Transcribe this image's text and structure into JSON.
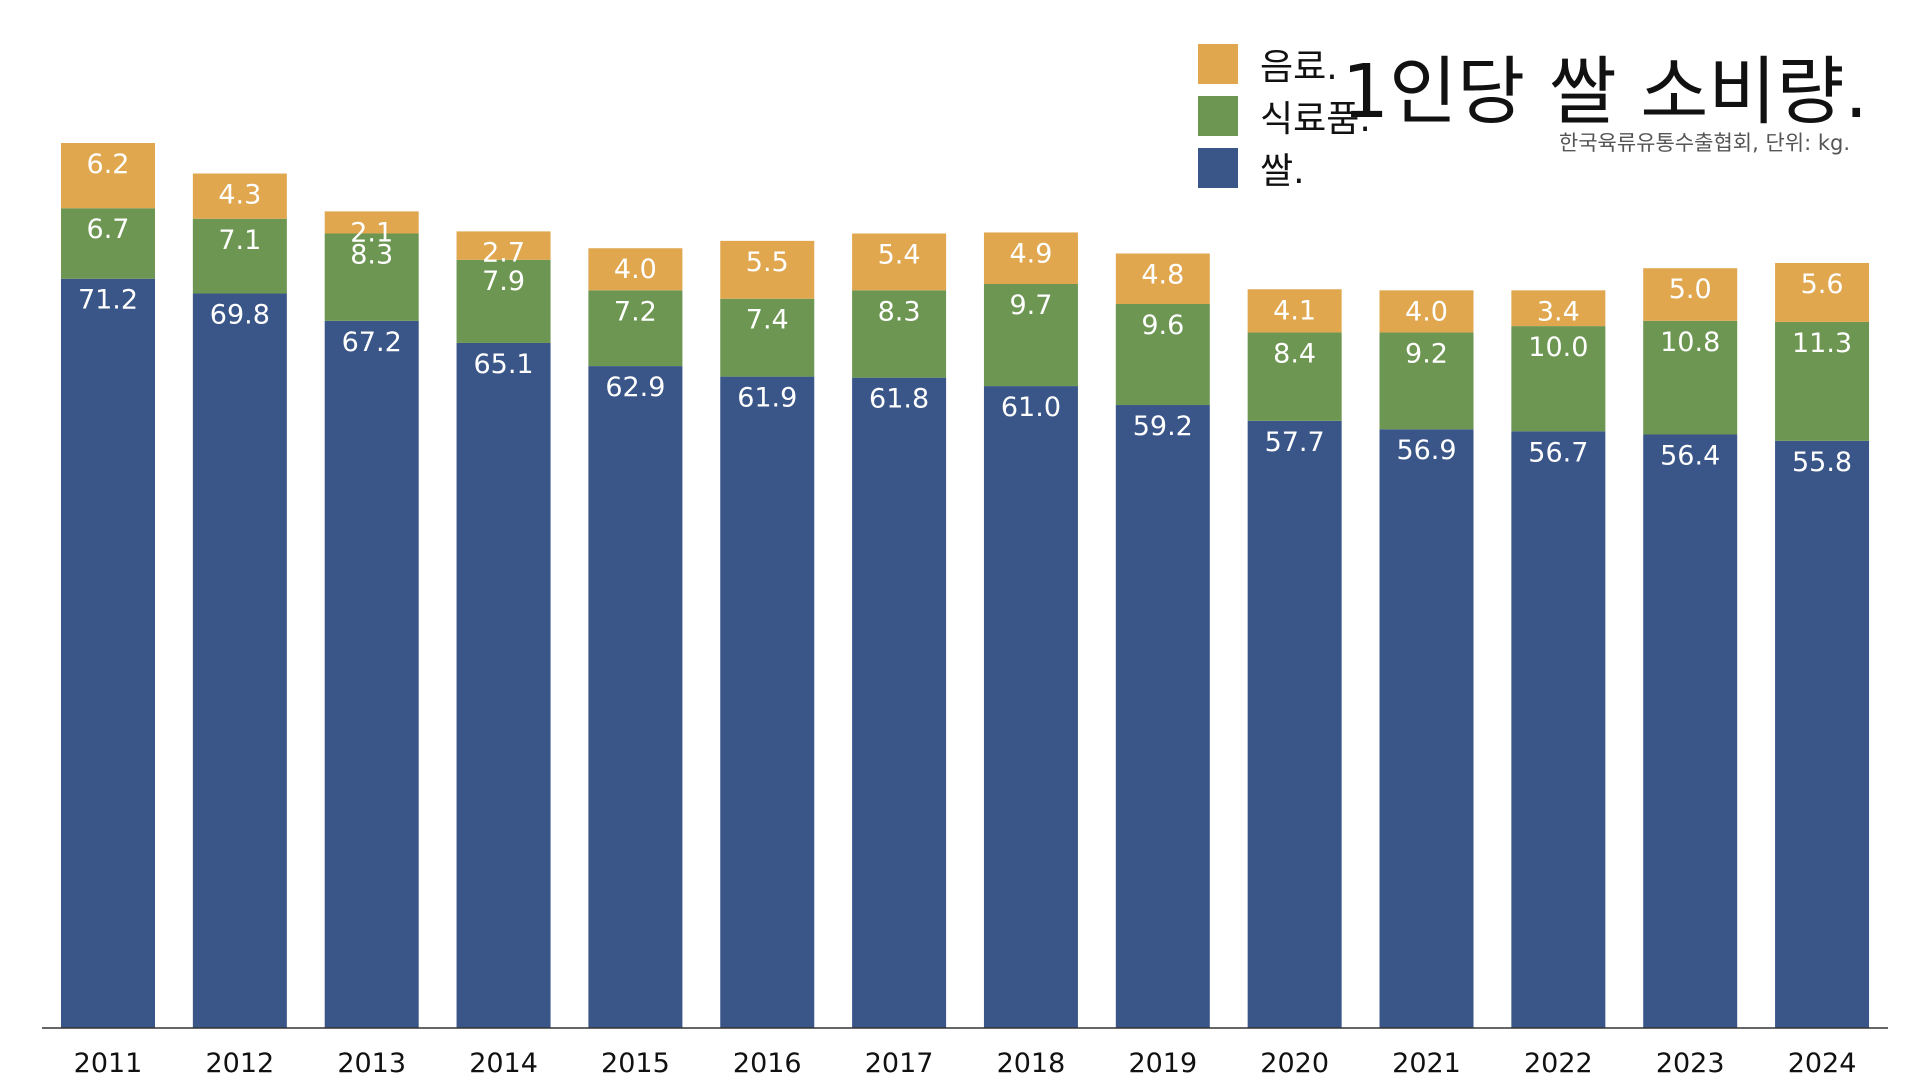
{
  "title": "1인당 쌀 소비량.",
  "subtitle": "한국육류유통수출협회, 단위: kg.",
  "legend": [
    {
      "label": "음료.",
      "color": "#E0A74F"
    },
    {
      "label": "식료품.",
      "color": "#6C9651"
    },
    {
      "label": "쌀.",
      "color": "#3A5688"
    }
  ],
  "chart_data": {
    "type": "bar",
    "stacked": true,
    "categories": [
      "2011",
      "2012",
      "2013",
      "2014",
      "2015",
      "2016",
      "2017",
      "2018",
      "2019",
      "2020",
      "2021",
      "2022",
      "2023",
      "2024"
    ],
    "series": [
      {
        "name": "쌀.",
        "color": "#3A5688",
        "values": [
          71.2,
          69.8,
          67.2,
          65.1,
          62.9,
          61.9,
          61.8,
          61.0,
          59.2,
          57.7,
          56.9,
          56.7,
          56.4,
          55.8
        ]
      },
      {
        "name": "식료품.",
        "color": "#6C9651",
        "values": [
          6.7,
          7.1,
          8.3,
          7.9,
          7.2,
          7.4,
          8.3,
          9.7,
          9.6,
          8.4,
          9.2,
          10.0,
          10.8,
          11.3
        ]
      },
      {
        "name": "음료.",
        "color": "#E0A74F",
        "values": [
          6.2,
          4.3,
          2.1,
          2.7,
          4.0,
          5.5,
          5.4,
          4.9,
          4.8,
          4.1,
          4.0,
          3.4,
          5.0,
          5.6
        ]
      }
    ],
    "ylim": [
      0,
      84.1
    ],
    "grid": false,
    "data_labels": true,
    "legend_position": "top-center"
  }
}
